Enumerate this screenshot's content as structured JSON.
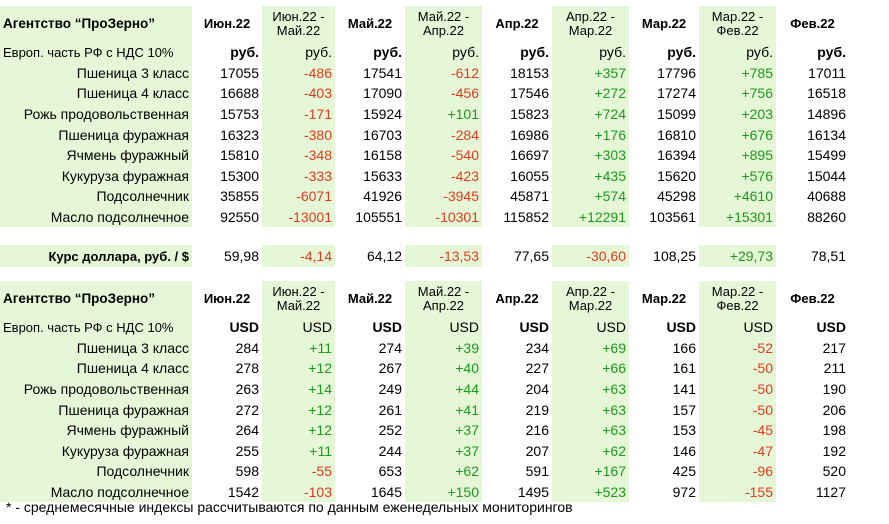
{
  "section1": {
    "title": "Агентство “ПроЗерно”",
    "periods": [
      "Июн.22",
      "Июн.22 -\nМай.22",
      "Май.22",
      "Май.22 -\nАпр.22",
      "Апр.22",
      "Апр.22 -\nМар.22",
      "Мар.22",
      "Мар.22 -\nФев.22",
      "Фев.22"
    ],
    "unit_label": "Европ. часть РФ с НДС 10%",
    "units": [
      "руб.",
      "руб.",
      "руб.",
      "руб.",
      "руб.",
      "руб.",
      "руб.",
      "руб.",
      "руб."
    ],
    "rows": [
      {
        "label": "Пшеница 3 класс",
        "values": [
          "17055",
          "-486",
          "17541",
          "-612",
          "18153",
          "+357",
          "17796",
          "+785",
          "17011"
        ]
      },
      {
        "label": "Пшеница 4 класс",
        "values": [
          "16688",
          "-403",
          "17090",
          "-456",
          "17546",
          "+272",
          "17274",
          "+756",
          "16518"
        ]
      },
      {
        "label": "Рожь продовольственная",
        "values": [
          "15753",
          "-171",
          "15924",
          "+101",
          "15823",
          "+724",
          "15099",
          "+203",
          "14896"
        ]
      },
      {
        "label": "Пшеница фуражная",
        "values": [
          "16323",
          "-380",
          "16703",
          "-284",
          "16986",
          "+176",
          "16810",
          "+676",
          "16134"
        ]
      },
      {
        "label": "Ячмень фуражный",
        "values": [
          "15810",
          "-348",
          "16158",
          "-540",
          "16697",
          "+303",
          "16394",
          "+895",
          "15499"
        ]
      },
      {
        "label": "Кукуруза фуражная",
        "values": [
          "15300",
          "-333",
          "15633",
          "-423",
          "16055",
          "+435",
          "15620",
          "+576",
          "15044"
        ]
      },
      {
        "label": "Подсолнечник",
        "values": [
          "35855",
          "-6071",
          "41926",
          "-3945",
          "45871",
          "+574",
          "45298",
          "+4610",
          "40688"
        ]
      },
      {
        "label": "Масло подсолнечное",
        "values": [
          "92550",
          "-13001",
          "105551",
          "-10301",
          "115852",
          "+12291",
          "103561",
          "+15301",
          "88260"
        ]
      }
    ]
  },
  "exchange": {
    "label": "Курс доллара, руб. / $",
    "values": [
      "59,98",
      "-4,14",
      "64,12",
      "-13,53",
      "77,65",
      "-30,60",
      "108,25",
      "+29,73",
      "78,51"
    ]
  },
  "section2": {
    "title": "Агентство “ПроЗерно”",
    "periods": [
      "Июн.22",
      "Июн.22 -\nМай.22",
      "Май.22",
      "Май.22 -\nАпр.22",
      "Апр.22",
      "Апр.22 -\nМар.22",
      "Мар.22",
      "Мар.22 -\nФев.22",
      "Фев.22"
    ],
    "unit_label": "Европ. часть РФ с НДС 10%",
    "units": [
      "USD",
      "USD",
      "USD",
      "USD",
      "USD",
      "USD",
      "USD",
      "USD",
      "USD"
    ],
    "rows": [
      {
        "label": "Пшеница 3 класс",
        "values": [
          "284",
          "+11",
          "274",
          "+39",
          "234",
          "+69",
          "166",
          "-52",
          "217"
        ]
      },
      {
        "label": "Пшеница 4 класс",
        "values": [
          "278",
          "+12",
          "267",
          "+40",
          "227",
          "+66",
          "161",
          "-50",
          "211"
        ]
      },
      {
        "label": "Рожь продовольственная",
        "values": [
          "263",
          "+14",
          "249",
          "+44",
          "204",
          "+63",
          "141",
          "-50",
          "190"
        ]
      },
      {
        "label": "Пшеница фуражная",
        "values": [
          "272",
          "+12",
          "261",
          "+41",
          "219",
          "+63",
          "157",
          "-50",
          "206"
        ]
      },
      {
        "label": "Ячмень фуражный",
        "values": [
          "264",
          "+12",
          "252",
          "+37",
          "216",
          "+63",
          "153",
          "-45",
          "198"
        ]
      },
      {
        "label": "Кукуруза фуражная",
        "values": [
          "255",
          "+11",
          "244",
          "+37",
          "207",
          "+62",
          "146",
          "-47",
          "192"
        ]
      },
      {
        "label": "Подсолнечник",
        "values": [
          "598",
          "-55",
          "653",
          "+62",
          "591",
          "+167",
          "425",
          "-96",
          "520"
        ]
      },
      {
        "label": "Масло подсолнечное",
        "values": [
          "1542",
          "-103",
          "1645",
          "+150",
          "1495",
          "+523",
          "972",
          "-155",
          "1127"
        ]
      }
    ]
  },
  "footnote": "* - среднемесячные индексы рассчитываются по данным еженедельных мониторингов",
  "colors": {
    "band": "#e6f7d7",
    "negative": "#e03a1c",
    "positive": "#1b9a1b"
  }
}
